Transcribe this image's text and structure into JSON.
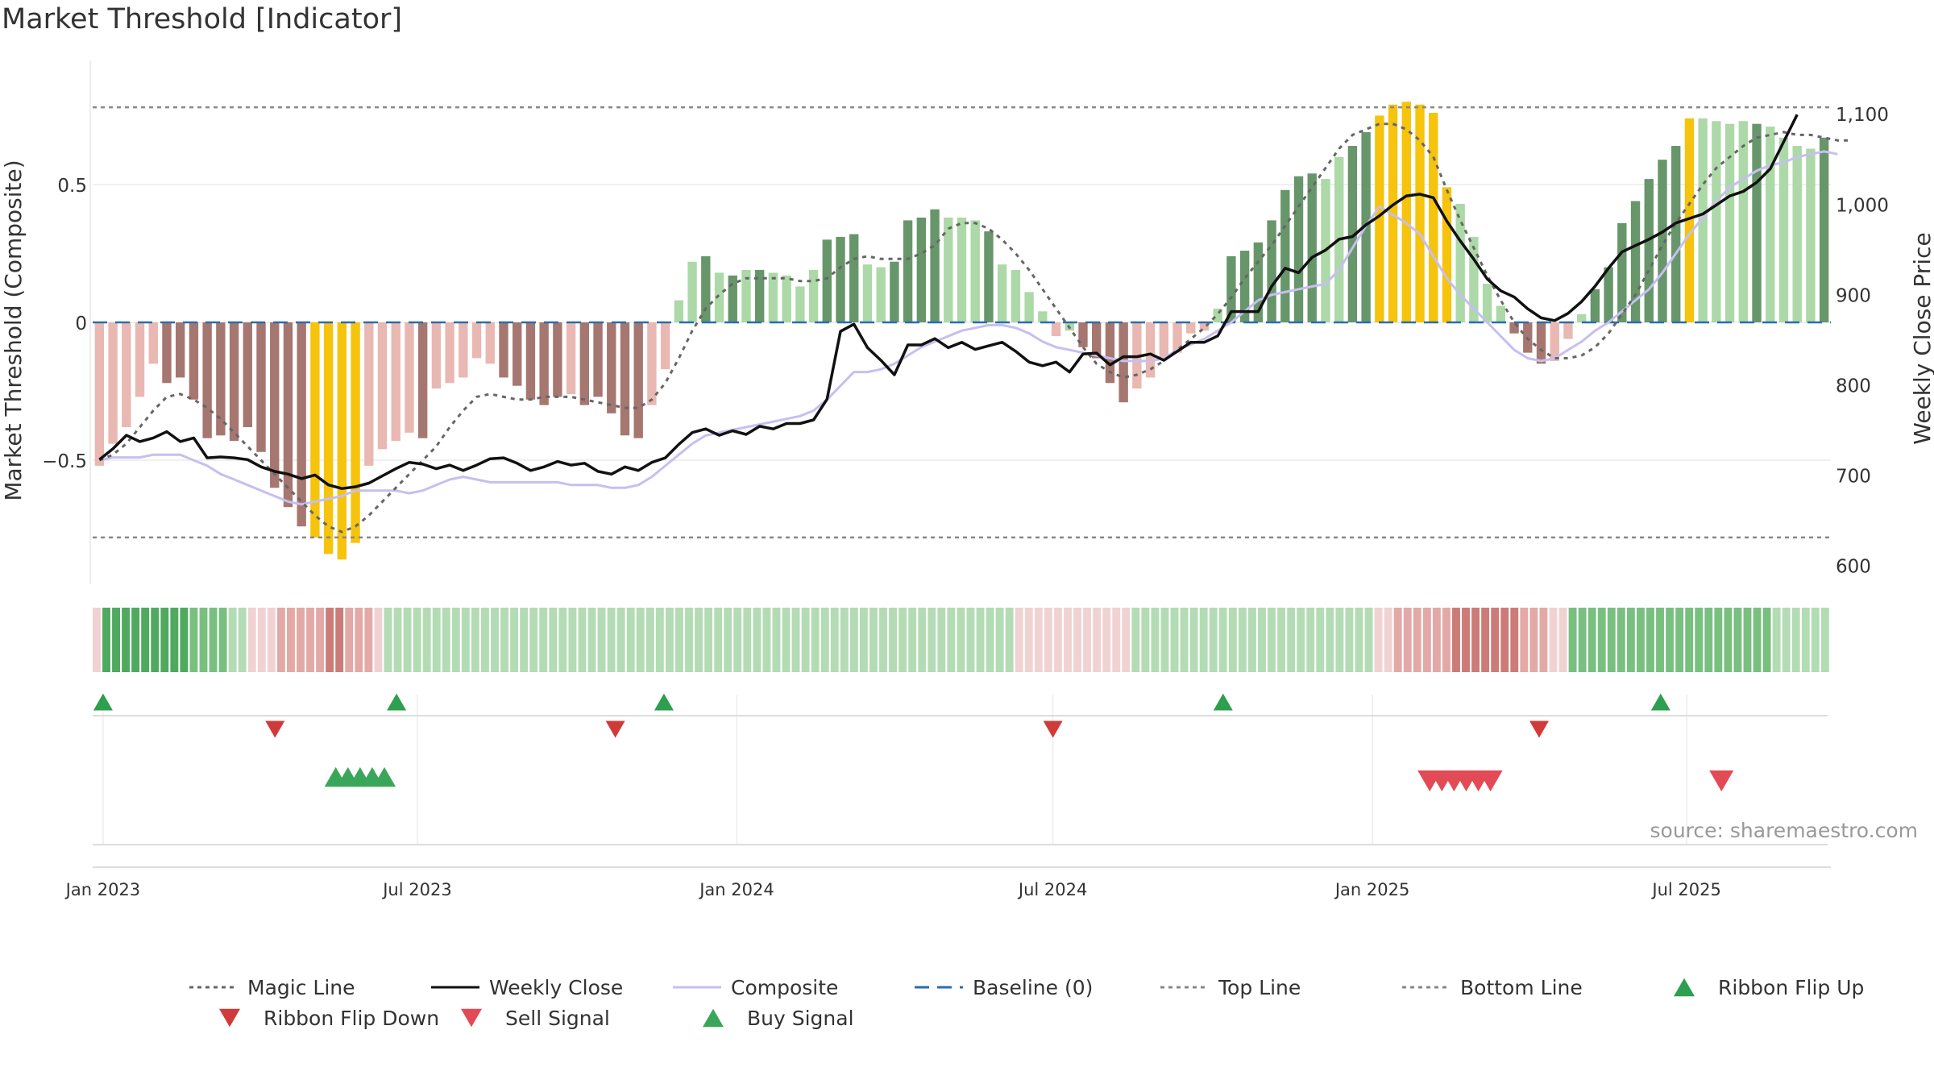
{
  "chart_data": {
    "type": "bar",
    "title": "Market Threshold [Indicator]",
    "source_note": "source: sharemaestro.com",
    "left_axis": {
      "label": "Market Threshold (Composite)",
      "ylim": [
        -0.95,
        0.95
      ],
      "ticks": [
        -0.5,
        0,
        0.5
      ],
      "tick_labels": [
        "−0.5",
        "0",
        "0.5"
      ]
    },
    "right_axis": {
      "label": "Weekly Close Price",
      "ylim": [
        580,
        1160
      ],
      "ticks": [
        600,
        700,
        800,
        900,
        1000,
        1100
      ],
      "tick_labels": [
        "600",
        "700",
        "800",
        "900",
        "1,000",
        "1,100"
      ]
    },
    "x_axis": {
      "start": "2022-12-26",
      "end": "2025-09-22",
      "ticks": [
        "2023-01-01",
        "2023-07-01",
        "2024-01-01",
        "2024-07-01",
        "2025-01-01",
        "2025-07-01"
      ],
      "tick_labels": [
        "Jan 2023",
        "Jul 2023",
        "Jan 2024",
        "Jul 2024",
        "Jan 2025",
        "Jul 2025"
      ]
    },
    "grid": true,
    "legend_position": "bottom",
    "top_line": 0.78,
    "bottom_line": -0.78,
    "composite_bars": [
      -0.52,
      -0.44,
      -0.38,
      -0.27,
      -0.15,
      -0.22,
      -0.2,
      -0.28,
      -0.42,
      -0.41,
      -0.43,
      -0.38,
      -0.47,
      -0.6,
      -0.67,
      -0.74,
      -0.78,
      -0.84,
      -0.86,
      -0.8,
      -0.52,
      -0.46,
      -0.43,
      -0.4,
      -0.42,
      -0.24,
      -0.22,
      -0.2,
      -0.13,
      -0.15,
      -0.2,
      -0.23,
      -0.28,
      -0.3,
      -0.27,
      -0.26,
      -0.3,
      -0.27,
      -0.33,
      -0.41,
      -0.42,
      -0.3,
      -0.17,
      0.08,
      0.22,
      0.24,
      0.18,
      0.17,
      0.19,
      0.19,
      0.18,
      0.17,
      0.13,
      0.19,
      0.3,
      0.31,
      0.32,
      0.21,
      0.2,
      0.22,
      0.37,
      0.38,
      0.41,
      0.38,
      0.38,
      0.37,
      0.33,
      0.21,
      0.19,
      0.11,
      0.04,
      -0.05,
      -0.03,
      -0.09,
      -0.13,
      -0.22,
      -0.29,
      -0.24,
      -0.2,
      -0.13,
      -0.11,
      -0.04,
      -0.03,
      0.05,
      0.24,
      0.26,
      0.29,
      0.37,
      0.48,
      0.53,
      0.54,
      0.52,
      0.6,
      0.64,
      0.69,
      0.75,
      0.79,
      0.8,
      0.79,
      0.76,
      0.49,
      0.43,
      0.31,
      0.14,
      0.06,
      -0.04,
      -0.11,
      -0.15,
      -0.14,
      -0.06,
      0.03,
      0.12,
      0.2,
      0.36,
      0.44,
      0.52,
      0.59,
      0.64,
      0.74,
      0.74,
      0.73,
      0.72,
      0.73,
      0.72,
      0.71,
      0.67,
      0.64,
      0.63,
      0.67
    ],
    "bar_colors": [
      "#e9b8b2",
      "#e9b8b2",
      "#e9b8b2",
      "#e9b8b2",
      "#e9b8b2",
      "#a57770",
      "#a57770",
      "#a57770",
      "#a57770",
      "#a57770",
      "#a57770",
      "#a57770",
      "#a57770",
      "#a57770",
      "#a57770",
      "#a57770",
      "#f6c30d",
      "#f6c30d",
      "#f6c30d",
      "#f6c30d",
      "#e9b8b2",
      "#e9b8b2",
      "#e9b8b2",
      "#e9b8b2",
      "#a57770",
      "#e9b8b2",
      "#e9b8b2",
      "#e9b8b2",
      "#e9b8b2",
      "#e9b8b2",
      "#a57770",
      "#a57770",
      "#a57770",
      "#a57770",
      "#a57770",
      "#e9b8b2",
      "#a57770",
      "#a57770",
      "#a57770",
      "#a57770",
      "#a57770",
      "#e9b8b2",
      "#e9b8b2",
      "#acd9a7",
      "#acd9a7",
      "#67966a",
      "#acd9a7",
      "#67966a",
      "#acd9a7",
      "#67966a",
      "#acd9a7",
      "#acd9a7",
      "#acd9a7",
      "#acd9a7",
      "#67966a",
      "#67966a",
      "#67966a",
      "#acd9a7",
      "#acd9a7",
      "#67966a",
      "#67966a",
      "#67966a",
      "#67966a",
      "#acd9a7",
      "#acd9a7",
      "#acd9a7",
      "#67966a",
      "#acd9a7",
      "#acd9a7",
      "#acd9a7",
      "#acd9a7",
      "#e9b8b2",
      "#acd9a7",
      "#a57770",
      "#a57770",
      "#a57770",
      "#a57770",
      "#e9b8b2",
      "#e9b8b2",
      "#e9b8b2",
      "#e9b8b2",
      "#e9b8b2",
      "#e9b8b2",
      "#acd9a7",
      "#67966a",
      "#67966a",
      "#67966a",
      "#67966a",
      "#67966a",
      "#67966a",
      "#67966a",
      "#acd9a7",
      "#acd9a7",
      "#67966a",
      "#67966a",
      "#f6c30d",
      "#f6c30d",
      "#f6c30d",
      "#f6c30d",
      "#f6c30d",
      "#f6c30d",
      "#acd9a7",
      "#acd9a7",
      "#acd9a7",
      "#acd9a7",
      "#a57770",
      "#a57770",
      "#a57770",
      "#e9b8b2",
      "#e9b8b2",
      "#acd9a7",
      "#67966a",
      "#67966a",
      "#67966a",
      "#67966a",
      "#67966a",
      "#67966a",
      "#67966a",
      "#f6c30d",
      "#acd9a7",
      "#acd9a7",
      "#acd9a7",
      "#acd9a7",
      "#67966a",
      "#acd9a7",
      "#acd9a7",
      "#acd9a7",
      "#acd9a7",
      "#67966a"
    ],
    "series": [
      {
        "name": "Magic Line",
        "color": "#666666",
        "values": [
          -0.5,
          -0.48,
          -0.44,
          -0.38,
          -0.32,
          -0.27,
          -0.26,
          -0.28,
          -0.31,
          -0.35,
          -0.4,
          -0.45,
          -0.5,
          -0.55,
          -0.6,
          -0.65,
          -0.7,
          -0.74,
          -0.76,
          -0.74,
          -0.7,
          -0.65,
          -0.6,
          -0.55,
          -0.5,
          -0.45,
          -0.38,
          -0.32,
          -0.27,
          -0.26,
          -0.27,
          -0.28,
          -0.28,
          -0.27,
          -0.27,
          -0.27,
          -0.28,
          -0.29,
          -0.3,
          -0.31,
          -0.31,
          -0.28,
          -0.22,
          -0.13,
          -0.03,
          0.05,
          0.1,
          0.14,
          0.16,
          0.16,
          0.16,
          0.16,
          0.15,
          0.15,
          0.16,
          0.2,
          0.23,
          0.24,
          0.23,
          0.23,
          0.23,
          0.25,
          0.28,
          0.34,
          0.36,
          0.36,
          0.34,
          0.3,
          0.25,
          0.19,
          0.12,
          0.05,
          -0.02,
          -0.09,
          -0.15,
          -0.18,
          -0.2,
          -0.19,
          -0.17,
          -0.14,
          -0.1,
          -0.06,
          -0.02,
          0.03,
          0.09,
          0.16,
          0.22,
          0.28,
          0.35,
          0.42,
          0.49,
          0.56,
          0.63,
          0.68,
          0.7,
          0.72,
          0.72,
          0.7,
          0.66,
          0.6,
          0.48,
          0.37,
          0.27,
          0.17,
          0.08,
          0.0,
          -0.06,
          -0.1,
          -0.13,
          -0.13,
          -0.12,
          -0.09,
          -0.04,
          0.03,
          0.1,
          0.19,
          0.28,
          0.36,
          0.43,
          0.5,
          0.56,
          0.6,
          0.64,
          0.67,
          0.68,
          0.69,
          0.68,
          0.68,
          0.67,
          0.66,
          0.66
        ]
      },
      {
        "name": "Weekly Close",
        "color": "#111111",
        "values": [
          718,
          730,
          745,
          738,
          742,
          749,
          738,
          742,
          720,
          721,
          720,
          718,
          710,
          705,
          702,
          697,
          701,
          690,
          686,
          688,
          692,
          700,
          708,
          715,
          713,
          708,
          712,
          706,
          712,
          719,
          720,
          714,
          706,
          710,
          716,
          712,
          714,
          705,
          702,
          710,
          706,
          715,
          720,
          735,
          748,
          752,
          745,
          750,
          746,
          755,
          752,
          758,
          758,
          762,
          785,
          860,
          868,
          842,
          828,
          812,
          845,
          845,
          852,
          842,
          848,
          840,
          844,
          848,
          838,
          826,
          822,
          826,
          815,
          835,
          836,
          823,
          832,
          832,
          835,
          828,
          838,
          848,
          848,
          855,
          882,
          882,
          882,
          910,
          930,
          925,
          942,
          950,
          962,
          965,
          978,
          988,
          1000,
          1010,
          1012,
          1008,
          982,
          960,
          940,
          918,
          905,
          898,
          885,
          875,
          872,
          880,
          893,
          910,
          930,
          948,
          955,
          962,
          970,
          980,
          985,
          990,
          1000,
          1010,
          1015,
          1025,
          1040,
          1070,
          1100
        ]
      },
      {
        "name": "Composite",
        "color": "#c6bff0",
        "values": [
          -0.5,
          -0.49,
          -0.49,
          -0.49,
          -0.48,
          -0.48,
          -0.48,
          -0.5,
          -0.52,
          -0.55,
          -0.57,
          -0.59,
          -0.61,
          -0.63,
          -0.65,
          -0.66,
          -0.65,
          -0.64,
          -0.63,
          -0.61,
          -0.61,
          -0.61,
          -0.61,
          -0.62,
          -0.61,
          -0.59,
          -0.57,
          -0.56,
          -0.57,
          -0.58,
          -0.58,
          -0.58,
          -0.58,
          -0.58,
          -0.58,
          -0.59,
          -0.59,
          -0.59,
          -0.6,
          -0.6,
          -0.59,
          -0.56,
          -0.52,
          -0.48,
          -0.44,
          -0.41,
          -0.4,
          -0.39,
          -0.38,
          -0.37,
          -0.36,
          -0.35,
          -0.34,
          -0.32,
          -0.28,
          -0.23,
          -0.18,
          -0.18,
          -0.17,
          -0.15,
          -0.12,
          -0.09,
          -0.07,
          -0.05,
          -0.03,
          -0.02,
          -0.01,
          -0.01,
          -0.02,
          -0.04,
          -0.07,
          -0.09,
          -0.1,
          -0.11,
          -0.12,
          -0.13,
          -0.14,
          -0.14,
          -0.14,
          -0.13,
          -0.1,
          -0.08,
          -0.06,
          -0.03,
          0.0,
          0.04,
          0.08,
          0.1,
          0.11,
          0.12,
          0.13,
          0.14,
          0.19,
          0.27,
          0.35,
          0.42,
          0.39,
          0.36,
          0.32,
          0.24,
          0.16,
          0.1,
          0.05,
          0.0,
          -0.05,
          -0.1,
          -0.13,
          -0.14,
          -0.13,
          -0.1,
          -0.07,
          -0.03,
          0.0,
          0.04,
          0.08,
          0.12,
          0.18,
          0.25,
          0.32,
          0.38,
          0.44,
          0.49,
          0.52,
          0.55,
          0.57,
          0.58,
          0.6,
          0.61,
          0.62,
          0.61
        ]
      }
    ],
    "ribbon_levels": [
      -1,
      3,
      3,
      3,
      3,
      3,
      3,
      3,
      3,
      3,
      2,
      2,
      2,
      2,
      1,
      1,
      -1,
      -1,
      -1,
      -2,
      -2,
      -2,
      -2,
      -2,
      -3,
      -3,
      -2,
      -2,
      -2,
      -1,
      1,
      1,
      1,
      1,
      1,
      1,
      1,
      1,
      1,
      1,
      1,
      1,
      1,
      1,
      1,
      1,
      1,
      1,
      1,
      1,
      1,
      1,
      1,
      1,
      1,
      1,
      1,
      1,
      1,
      1,
      1,
      1,
      1,
      1,
      1,
      1,
      1,
      1,
      1,
      1,
      1,
      1,
      1,
      1,
      1,
      1,
      1,
      1,
      1,
      1,
      1,
      1,
      1,
      1,
      1,
      1,
      1,
      1,
      1,
      1,
      1,
      1,
      1,
      1,
      1,
      -1,
      -1,
      -1,
      -1,
      -1,
      -1,
      -1,
      -1,
      -1,
      -1,
      -1,
      -1,
      1,
      1,
      1,
      1,
      1,
      1,
      1,
      1,
      1,
      1,
      1,
      1,
      1,
      1,
      1,
      1,
      1,
      1,
      1,
      1,
      1,
      1,
      1,
      1,
      1,
      -1,
      -1,
      -2,
      -2,
      -2,
      -2,
      -2,
      -2,
      -3,
      -3,
      -3,
      -3,
      -3,
      -3,
      -3,
      -2,
      -2,
      -2,
      -1,
      -1,
      2,
      2,
      2,
      2,
      2,
      2,
      2,
      2,
      2,
      2,
      2,
      2,
      2,
      2,
      2,
      2,
      2,
      2,
      2,
      2,
      2,
      1,
      1,
      1,
      1,
      1,
      1
    ],
    "ribbon_levels_weeks_match_bars": false,
    "signals": {
      "ribbon_flip_up": [
        "2023-01-01",
        "2023-06-19",
        "2023-11-20",
        "2024-10-07",
        "2025-06-16"
      ],
      "ribbon_flip_down": [
        "2023-04-10",
        "2023-10-23",
        "2024-07-01",
        "2025-04-07"
      ],
      "buy_signal": [
        "2023-05-15",
        "2023-05-22",
        "2023-05-29",
        "2023-06-05",
        "2023-06-12"
      ],
      "sell_signal": [
        "2025-02-03",
        "2025-02-10",
        "2025-02-17",
        "2025-02-24",
        "2025-03-03",
        "2025-03-10",
        "2025-07-21"
      ]
    },
    "legend": [
      {
        "name": "Magic Line",
        "style": "dotted",
        "color": "#666666"
      },
      {
        "name": "Weekly Close",
        "style": "solid",
        "color": "#111111"
      },
      {
        "name": "Composite",
        "style": "solid",
        "color": "#c6bff0"
      },
      {
        "name": "Baseline (0)",
        "style": "dashed",
        "color": "#2b6cb0"
      },
      {
        "name": "Top Line",
        "style": "dotted",
        "color": "#888888"
      },
      {
        "name": "Bottom Line",
        "style": "dotted",
        "color": "#888888"
      },
      {
        "name": "Ribbon Flip Up",
        "style": "triangle-up",
        "color": "#2e9e4f"
      },
      {
        "name": "Ribbon Flip Down",
        "style": "triangle-down",
        "color": "#d03a3a"
      },
      {
        "name": "Sell Signal",
        "style": "triangle-down",
        "color": "#e24a55"
      },
      {
        "name": "Buy Signal",
        "style": "triangle-up",
        "color": "#3aa65a"
      }
    ]
  }
}
